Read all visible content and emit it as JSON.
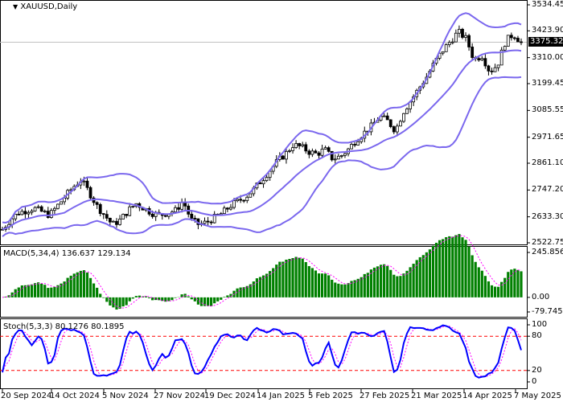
{
  "header": {
    "symbol_label": "XAUUSD,Daily"
  },
  "price_axis": {
    "ticks": [
      "3534.45",
      "3423.90",
      "3310.00",
      "3199.45",
      "3085.55",
      "2971.65",
      "2861.10",
      "2747.20",
      "2633.30",
      "2522.75"
    ],
    "current_price": "3375.32"
  },
  "macd": {
    "label": "MACD(5,34,4) 136.637 129.134",
    "ticks": [
      "245.856",
      "0.00",
      "-79.745"
    ]
  },
  "stoch": {
    "label": "Stoch(5,3,3) 80.1276 80.1895",
    "ticks": [
      "100",
      "80",
      "20",
      "0"
    ]
  },
  "time_axis": {
    "ticks": [
      "20 Sep 2024",
      "14 Oct 2024",
      "5 Nov 2024",
      "27 Nov 2024",
      "19 Dec 2024",
      "14 Jan 2025",
      "5 Feb 2025",
      "27 Feb 2025",
      "21 Mar 2025",
      "14 Apr 2025",
      "7 May 2025"
    ]
  },
  "colors": {
    "bands": "#7b68ee",
    "macd_hist": "#008000",
    "macd_signal": "#ff00ff",
    "stoch_main": "#0000ff",
    "stoch_signal": "#ff00ff",
    "levels": "#ff0000"
  },
  "chart_data": [
    {
      "type": "candlestick",
      "title": "XAUUSD,Daily",
      "indicators": [
        "Bollinger Bands"
      ],
      "ylim": [
        2522.75,
        3534.45
      ],
      "x_ticks": [
        "20 Sep 2024",
        "14 Oct 2024",
        "5 Nov 2024",
        "27 Nov 2024",
        "19 Dec 2024",
        "14 Jan 2025",
        "5 Feb 2025",
        "27 Feb 2025",
        "21 Mar 2025",
        "14 Apr 2025",
        "7 May 2025"
      ],
      "approx_close": [
        2580,
        2620,
        2650,
        2660,
        2670,
        2655,
        2640,
        2680,
        2720,
        2760,
        2790,
        2740,
        2680,
        2640,
        2600,
        2620,
        2660,
        2690,
        2670,
        2650,
        2640,
        2650,
        2660,
        2700,
        2620,
        2600,
        2610,
        2630,
        2650,
        2680,
        2700,
        2720,
        2750,
        2790,
        2830,
        2870,
        2900,
        2940,
        2930,
        2910,
        2900,
        2920,
        2880,
        2890,
        2920,
        2960,
        2990,
        3020,
        3060,
        3040,
        3000,
        3080,
        3130,
        3180,
        3230,
        3290,
        3340,
        3380,
        3420,
        3390,
        3300,
        3320,
        3250,
        3280,
        3380,
        3410,
        3375
      ],
      "last_price": 3375.32
    },
    {
      "type": "bar",
      "title": "MACD(5,34,4)",
      "values_label": [
        136.637,
        129.134
      ],
      "ylim": [
        -79.745,
        245.856
      ]
    },
    {
      "type": "line",
      "title": "Stoch(5,3,3)",
      "values_label": [
        80.1276,
        80.1895
      ],
      "levels": [
        20,
        80
      ],
      "ylim": [
        0,
        100
      ]
    }
  ]
}
